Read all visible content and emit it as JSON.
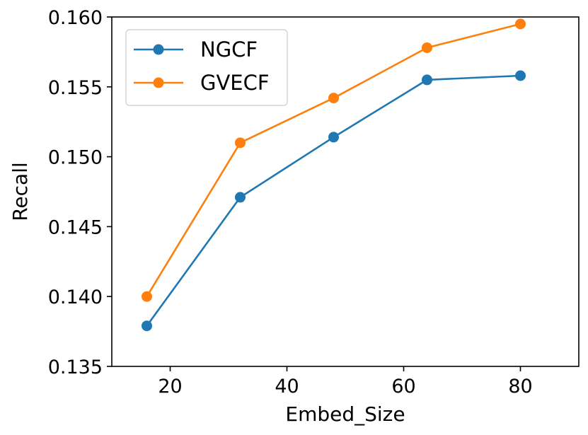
{
  "chart_data": {
    "type": "line",
    "title": "",
    "xlabel": "Embed_Size",
    "ylabel": "Recall",
    "xlim": [
      10,
      90
    ],
    "ylim": [
      0.135,
      0.16
    ],
    "x": [
      16,
      32,
      48,
      64,
      80
    ],
    "xticks": [
      20,
      40,
      60,
      80
    ],
    "xtick_labels": [
      "20",
      "40",
      "60",
      "80"
    ],
    "yticks": [
      0.135,
      0.14,
      0.145,
      0.15,
      0.155,
      0.16
    ],
    "ytick_labels": [
      "0.135",
      "0.140",
      "0.145",
      "0.150",
      "0.155",
      "0.160"
    ],
    "grid": false,
    "legend_position": "top-left",
    "series": [
      {
        "name": "NGCF",
        "color": "#1f77b4",
        "values": [
          0.1379,
          0.1471,
          0.1514,
          0.1555,
          0.1558
        ]
      },
      {
        "name": "GVECF",
        "color": "#ff7f0e",
        "values": [
          0.14,
          0.151,
          0.1542,
          0.1578,
          0.1595
        ]
      }
    ]
  }
}
